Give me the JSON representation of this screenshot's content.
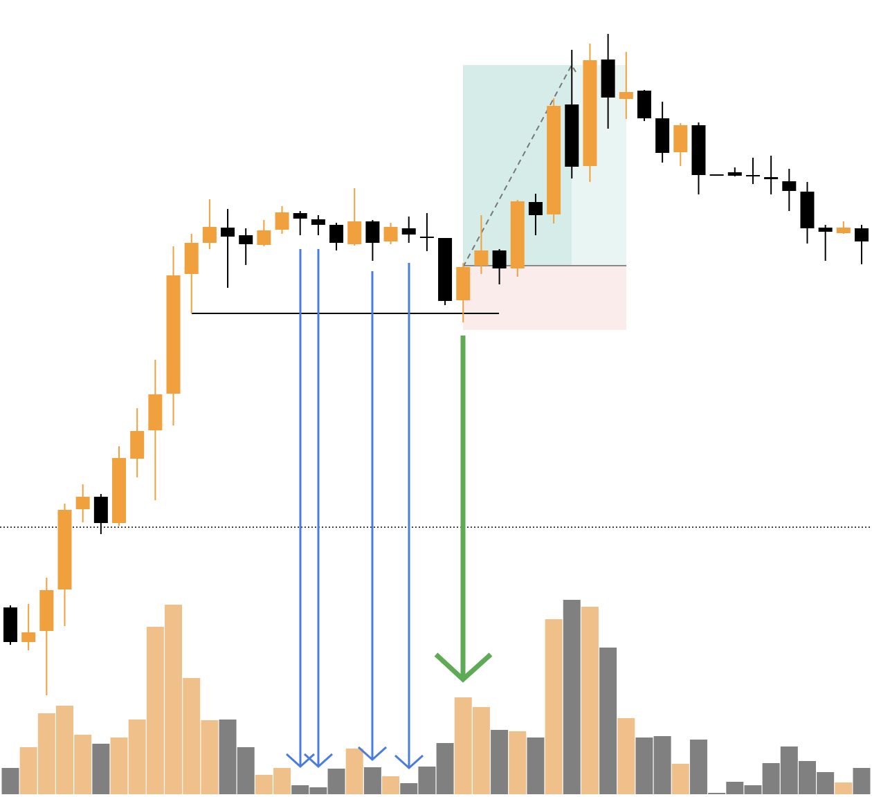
{
  "chart_data": {
    "type": "candlestick",
    "open": [
      274,
      224,
      240,
      300,
      416,
      434,
      396,
      489,
      530,
      583,
      756,
      801,
      823,
      812,
      798,
      820,
      844,
      835,
      827,
      799,
      832,
      803,
      822,
      810,
      808,
      718,
      768,
      790,
      764,
      860,
      842,
      1001,
      912,
      1066,
      1009,
      1021,
      981,
      932,
      971,
      900,
      903,
      899,
      896,
      890,
      875,
      823,
      815,
      822
    ],
    "high": [
      277,
      279,
      317,
      424,
      452,
      438,
      507,
      562,
      632,
      796,
      814,
      864,
      850,
      822,
      834,
      854,
      847,
      841,
      830,
      880,
      834,
      830,
      839,
      844,
      808,
      772,
      841,
      792,
      863,
      872,
      1010,
      1080,
      1089,
      1103,
      1077,
      1022,
      1005,
      974,
      975,
      900,
      910,
      924,
      927,
      908,
      889,
      827,
      832,
      827
    ],
    "low": [
      220,
      212,
      147,
      247,
      397,
      380,
      392,
      462,
      429,
      537,
      699,
      792,
      736,
      769,
      796,
      814,
      812,
      812,
      790,
      797,
      775,
      799,
      801,
      789,
      711,
      686,
      756,
      741,
      752,
      812,
      829,
      894,
      889,
      966,
      980,
      977,
      917,
      912,
      871,
      898,
      897,
      886,
      871,
      847,
      800,
      775,
      814,
      770
    ],
    "close": [
      224,
      238,
      299,
      415,
      434,
      396,
      490,
      529,
      582,
      754,
      801,
      824,
      810,
      799,
      819,
      845,
      836,
      827,
      801,
      832,
      801,
      824,
      813,
      809,
      717,
      766,
      790,
      764,
      861,
      841,
      999,
      911,
      1065,
      1011,
      1019,
      981,
      931,
      971,
      899,
      898,
      898,
      897,
      893,
      876,
      822,
      817,
      823,
      803
    ],
    "volume": [
      38,
      68,
      117,
      128,
      86,
      73,
      82,
      108,
      242,
      274,
      168,
      107,
      108,
      68,
      28,
      38,
      13,
      10,
      37,
      66,
      39,
      26,
      16,
      40,
      74,
      140,
      126,
      93,
      91,
      82,
      253,
      281,
      271,
      212,
      110,
      82,
      84,
      44,
      79,
      2,
      18,
      13,
      45,
      69,
      48,
      32,
      17,
      38
    ],
    "ylim": [
      0,
      1152
    ],
    "volume_ylim": [
      0,
      300
    ],
    "up_color": "#f0a03c",
    "down_color": "#000000",
    "volume_up_color": "#f0c08a",
    "volume_down_color": "#808080"
  }
}
